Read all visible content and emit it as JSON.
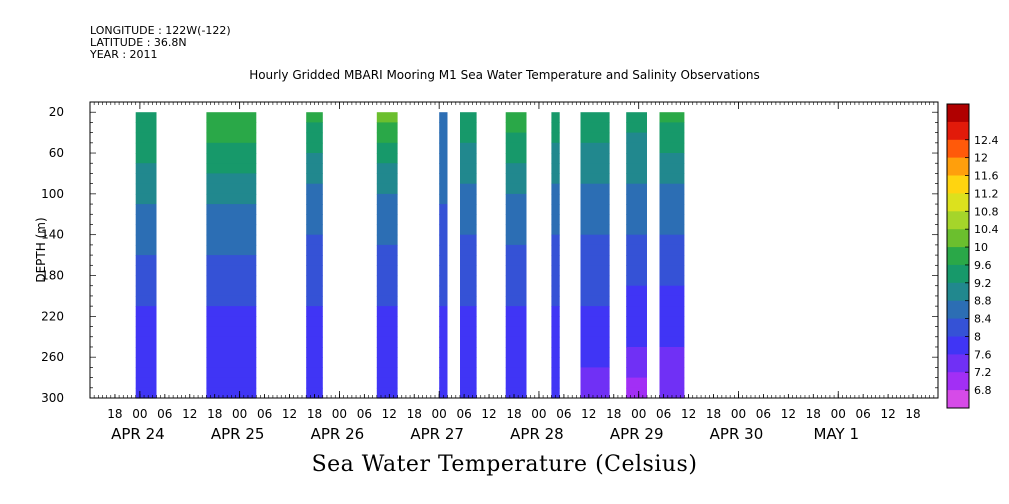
{
  "header": {
    "longitude": "LONGITUDE : 122W(-122)",
    "latitude": "LATITUDE : 36.8N",
    "year": "YEAR : 2011"
  },
  "title": "Hourly Gridded MBARI Mooring M1 Sea Water Temperature and Salinity Observations",
  "xlabel_main": "Sea Water Temperature (Celsius)",
  "chart_data": {
    "type": "heatmap",
    "title": "Hourly Gridded MBARI Mooring M1 Sea Water Temperature and Salinity Observations",
    "xlabel": "Sea Water Temperature (Celsius)",
    "ylabel": "DEPTH (m)",
    "x_unit": "hours since APR 24 00:00",
    "xlim": [
      -12,
      192
    ],
    "ylim": [
      300,
      10
    ],
    "y_ticks": [
      20,
      60,
      100,
      140,
      180,
      220,
      260,
      300
    ],
    "x_hour_ticks": [
      {
        "h": -6,
        "label": "18"
      },
      {
        "h": 0,
        "label": "00"
      },
      {
        "h": 6,
        "label": "06"
      },
      {
        "h": 12,
        "label": "12"
      },
      {
        "h": 18,
        "label": "18"
      },
      {
        "h": 24,
        "label": "00"
      },
      {
        "h": 30,
        "label": "06"
      },
      {
        "h": 36,
        "label": "12"
      },
      {
        "h": 42,
        "label": "18"
      },
      {
        "h": 48,
        "label": "00"
      },
      {
        "h": 54,
        "label": "06"
      },
      {
        "h": 60,
        "label": "12"
      },
      {
        "h": 66,
        "label": "18"
      },
      {
        "h": 72,
        "label": "00"
      },
      {
        "h": 78,
        "label": "06"
      },
      {
        "h": 84,
        "label": "12"
      },
      {
        "h": 90,
        "label": "18"
      },
      {
        "h": 96,
        "label": "00"
      },
      {
        "h": 102,
        "label": "06"
      },
      {
        "h": 108,
        "label": "12"
      },
      {
        "h": 114,
        "label": "18"
      },
      {
        "h": 120,
        "label": "00"
      },
      {
        "h": 126,
        "label": "06"
      },
      {
        "h": 132,
        "label": "12"
      },
      {
        "h": 138,
        "label": "18"
      },
      {
        "h": 144,
        "label": "00"
      },
      {
        "h": 150,
        "label": "06"
      },
      {
        "h": 156,
        "label": "12"
      },
      {
        "h": 162,
        "label": "18"
      },
      {
        "h": 168,
        "label": "00"
      },
      {
        "h": 174,
        "label": "06"
      },
      {
        "h": 180,
        "label": "12"
      },
      {
        "h": 186,
        "label": "18"
      }
    ],
    "x_day_labels": [
      {
        "h": 0,
        "label": "APR 24"
      },
      {
        "h": 24,
        "label": "APR 25"
      },
      {
        "h": 48,
        "label": "APR 26"
      },
      {
        "h": 72,
        "label": "APR 27"
      },
      {
        "h": 96,
        "label": "APR 28"
      },
      {
        "h": 120,
        "label": "APR 29"
      },
      {
        "h": 144,
        "label": "APR 30"
      },
      {
        "h": 168,
        "label": "MAY  1"
      }
    ],
    "colorbar": {
      "levels": [
        6.8,
        7.2,
        7.6,
        8,
        8.4,
        8.8,
        9.2,
        9.6,
        10,
        10.4,
        10.8,
        11.2,
        11.6,
        12,
        12.4
      ],
      "colors": [
        "#d64be8",
        "#a22ff5",
        "#7030f5",
        "#4035f5",
        "#3552d6",
        "#2c6eb4",
        "#21888e",
        "#17996a",
        "#2aa848",
        "#6bbf2e",
        "#a5d52a",
        "#dce11e",
        "#ffd410",
        "#ff9f0c",
        "#ff5a0a",
        "#e21a0a",
        "#b00000"
      ]
    },
    "data_segments": [
      {
        "start_h": -1,
        "end_h": 3,
        "profile": [
          9.6,
          9.2,
          8.8,
          8.4,
          8.0,
          7.8,
          7.6
        ]
      },
      {
        "start_h": 16,
        "end_h": 27,
        "profile": [
          10.0,
          9.3,
          8.8,
          8.4,
          8.0,
          7.8,
          7.6
        ]
      },
      {
        "start_h": 40,
        "end_h": 43,
        "profile": [
          9.8,
          9.0,
          8.6,
          8.3,
          8.0,
          7.8,
          7.6
        ]
      },
      {
        "start_h": 57,
        "end_h": 61,
        "profile": [
          10.2,
          9.2,
          8.7,
          8.3,
          8.0,
          7.8,
          7.6
        ]
      },
      {
        "start_h": 72,
        "end_h": 73,
        "profile": [
          8.8,
          8.6,
          8.4,
          8.2,
          8.0,
          7.8,
          7.6
        ]
      },
      {
        "start_h": 77,
        "end_h": 80,
        "profile": [
          9.6,
          9.0,
          8.6,
          8.3,
          8.0,
          7.8,
          7.6
        ]
      },
      {
        "start_h": 88,
        "end_h": 92,
        "profile": [
          10.0,
          9.2,
          8.7,
          8.3,
          8.0,
          7.8,
          7.6
        ]
      },
      {
        "start_h": 99,
        "end_h": 100,
        "profile": [
          9.6,
          9.0,
          8.6,
          8.3,
          8.0,
          7.8,
          7.6
        ]
      },
      {
        "start_h": 106,
        "end_h": 112,
        "profile": [
          9.6,
          9.0,
          8.6,
          8.3,
          8.0,
          7.7,
          7.4
        ]
      },
      {
        "start_h": 117,
        "end_h": 121,
        "profile": [
          9.4,
          9.0,
          8.6,
          8.2,
          7.9,
          7.6,
          7.0
        ]
      },
      {
        "start_h": 125,
        "end_h": 130,
        "profile": [
          9.8,
          9.0,
          8.6,
          8.2,
          7.9,
          7.6,
          7.2
        ]
      }
    ],
    "grid": false,
    "legend": "colorbar-right"
  }
}
